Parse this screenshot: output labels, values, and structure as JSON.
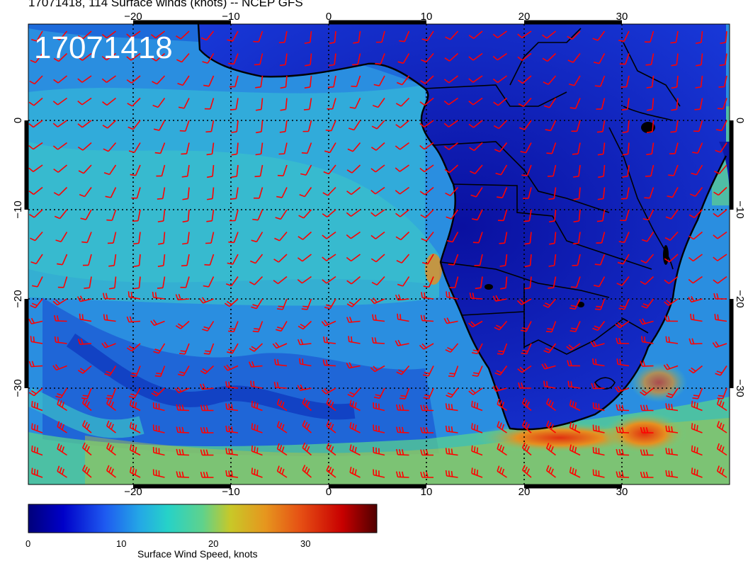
{
  "title": "17071418, 114 Surface winds (knots) -- NCEP GFS",
  "stamp": "17071418",
  "lon_ticks": [
    "−20",
    "−10",
    "0",
    "10",
    "20",
    "30"
  ],
  "lat_ticks": [
    "0",
    "−10",
    "−20",
    "−30"
  ],
  "colorbar": {
    "title": "Surface Wind Speed, knots",
    "ticks": [
      "0",
      "10",
      "20",
      "30"
    ],
    "range": [
      0,
      38
    ],
    "colors": [
      "#00007a",
      "#0000c8",
      "#1e5af0",
      "#24a8e6",
      "#26d2c8",
      "#5fd28c",
      "#c8c828",
      "#e6961e",
      "#e65014",
      "#c80000",
      "#500000"
    ]
  },
  "map": {
    "barb_color": "#ff0000",
    "coast_color": "#000000",
    "lon_range": [
      -30,
      40
    ],
    "lat_range": [
      -40,
      10
    ]
  }
}
